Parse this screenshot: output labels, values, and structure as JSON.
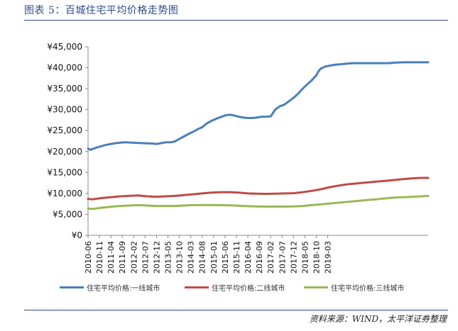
{
  "figure_title": "图表 5：百城住宅平均价格走势图",
  "source": "资料来源：WIND，太平洋证券整理",
  "colors": {
    "tier1": "#4a7ebb",
    "tier2": "#be4b48",
    "tier3": "#98b954"
  },
  "chart_data": {
    "type": "line",
    "title": "",
    "xlabel": "",
    "ylabel": "",
    "ylim": [
      0,
      45000
    ],
    "yticks": [
      0,
      5000,
      10000,
      15000,
      20000,
      25000,
      30000,
      35000,
      40000,
      45000
    ],
    "ytick_labels": [
      "¥0",
      "¥5,000",
      "¥10,000",
      "¥15,000",
      "¥20,000",
      "¥25,000",
      "¥30,000",
      "¥35,000",
      "¥40,000",
      "¥45,000"
    ],
    "x_tick_labels": [
      "2010-06",
      "2010-11",
      "2011-04",
      "2011-09",
      "2012-02",
      "2012-07",
      "2012-12",
      "2013-05",
      "2013-10",
      "2014-03",
      "2014-08",
      "2015-01",
      "2015-06",
      "2015-11",
      "2016-04",
      "2016-09",
      "2017-02",
      "2017-07",
      "2017-12",
      "2018-05",
      "2018-10",
      "2019-03"
    ],
    "x_start": "2010-06",
    "x_end": "2019-05",
    "series": [
      {
        "name": "住宅平均价格:一线城市",
        "color": "#4a7ebb",
        "points": [
          [
            0,
            20700
          ],
          [
            1,
            20400
          ],
          [
            2,
            20600
          ],
          [
            4,
            21000
          ],
          [
            8,
            21600
          ],
          [
            12,
            22000
          ],
          [
            16,
            22200
          ],
          [
            20,
            22100
          ],
          [
            24,
            22000
          ],
          [
            28,
            21900
          ],
          [
            30,
            21800
          ],
          [
            34,
            22200
          ],
          [
            36,
            22200
          ],
          [
            38,
            22400
          ],
          [
            40,
            23000
          ],
          [
            44,
            24200
          ],
          [
            46,
            24700
          ],
          [
            48,
            25300
          ],
          [
            50,
            25800
          ],
          [
            52,
            26700
          ],
          [
            54,
            27300
          ],
          [
            56,
            27800
          ],
          [
            58,
            28200
          ],
          [
            60,
            28600
          ],
          [
            62,
            28800
          ],
          [
            64,
            28600
          ],
          [
            66,
            28300
          ],
          [
            68,
            28100
          ],
          [
            70,
            28000
          ],
          [
            72,
            28000
          ],
          [
            74,
            28100
          ],
          [
            76,
            28300
          ],
          [
            78,
            28300
          ],
          [
            80,
            28400
          ],
          [
            81,
            29200
          ],
          [
            82,
            30000
          ],
          [
            84,
            30800
          ],
          [
            86,
            31200
          ],
          [
            88,
            32000
          ],
          [
            90,
            32800
          ],
          [
            92,
            33800
          ],
          [
            94,
            35000
          ],
          [
            96,
            36000
          ],
          [
            98,
            37000
          ],
          [
            100,
            38200
          ],
          [
            101,
            39200
          ],
          [
            102,
            39800
          ],
          [
            104,
            40300
          ],
          [
            108,
            40700
          ],
          [
            112,
            40900
          ],
          [
            114,
            41000
          ],
          [
            116,
            41100
          ],
          [
            120,
            41100
          ],
          [
            124,
            41100
          ],
          [
            128,
            41100
          ],
          [
            132,
            41100
          ],
          [
            134,
            41200
          ],
          [
            138,
            41300
          ],
          [
            142,
            41300
          ],
          [
            146,
            41300
          ],
          [
            149,
            41300
          ]
        ]
      },
      {
        "name": "住宅平均价格:二线城市",
        "color": "#be4b48",
        "points": [
          [
            0,
            8700
          ],
          [
            2,
            8600
          ],
          [
            6,
            8900
          ],
          [
            10,
            9100
          ],
          [
            14,
            9300
          ],
          [
            18,
            9400
          ],
          [
            22,
            9500
          ],
          [
            26,
            9300
          ],
          [
            30,
            9200
          ],
          [
            34,
            9300
          ],
          [
            38,
            9400
          ],
          [
            42,
            9600
          ],
          [
            46,
            9800
          ],
          [
            50,
            10000
          ],
          [
            54,
            10200
          ],
          [
            58,
            10300
          ],
          [
            62,
            10300
          ],
          [
            66,
            10200
          ],
          [
            70,
            10000
          ],
          [
            74,
            9950
          ],
          [
            78,
            9900
          ],
          [
            82,
            9950
          ],
          [
            86,
            10000
          ],
          [
            90,
            10050
          ],
          [
            94,
            10300
          ],
          [
            98,
            10600
          ],
          [
            102,
            11000
          ],
          [
            106,
            11500
          ],
          [
            110,
            11900
          ],
          [
            114,
            12200
          ],
          [
            118,
            12400
          ],
          [
            122,
            12600
          ],
          [
            126,
            12800
          ],
          [
            130,
            13000
          ],
          [
            134,
            13200
          ],
          [
            138,
            13400
          ],
          [
            142,
            13600
          ],
          [
            146,
            13700
          ],
          [
            149,
            13700
          ]
        ]
      },
      {
        "name": "住宅平均价格:三线城市",
        "color": "#98b954",
        "points": [
          [
            0,
            6400
          ],
          [
            2,
            6300
          ],
          [
            6,
            6600
          ],
          [
            10,
            6800
          ],
          [
            14,
            7000
          ],
          [
            18,
            7100
          ],
          [
            22,
            7200
          ],
          [
            26,
            7100
          ],
          [
            30,
            7000
          ],
          [
            34,
            7000
          ],
          [
            38,
            7000
          ],
          [
            42,
            7100
          ],
          [
            46,
            7200
          ],
          [
            50,
            7200
          ],
          [
            54,
            7200
          ],
          [
            58,
            7200
          ],
          [
            62,
            7150
          ],
          [
            66,
            7050
          ],
          [
            70,
            6950
          ],
          [
            74,
            6900
          ],
          [
            78,
            6850
          ],
          [
            82,
            6850
          ],
          [
            86,
            6850
          ],
          [
            90,
            6900
          ],
          [
            94,
            7000
          ],
          [
            98,
            7200
          ],
          [
            102,
            7400
          ],
          [
            106,
            7600
          ],
          [
            110,
            7800
          ],
          [
            114,
            8000
          ],
          [
            118,
            8200
          ],
          [
            122,
            8400
          ],
          [
            126,
            8600
          ],
          [
            130,
            8800
          ],
          [
            134,
            9000
          ],
          [
            138,
            9100
          ],
          [
            142,
            9200
          ],
          [
            146,
            9300
          ],
          [
            149,
            9400
          ]
        ]
      }
    ]
  }
}
